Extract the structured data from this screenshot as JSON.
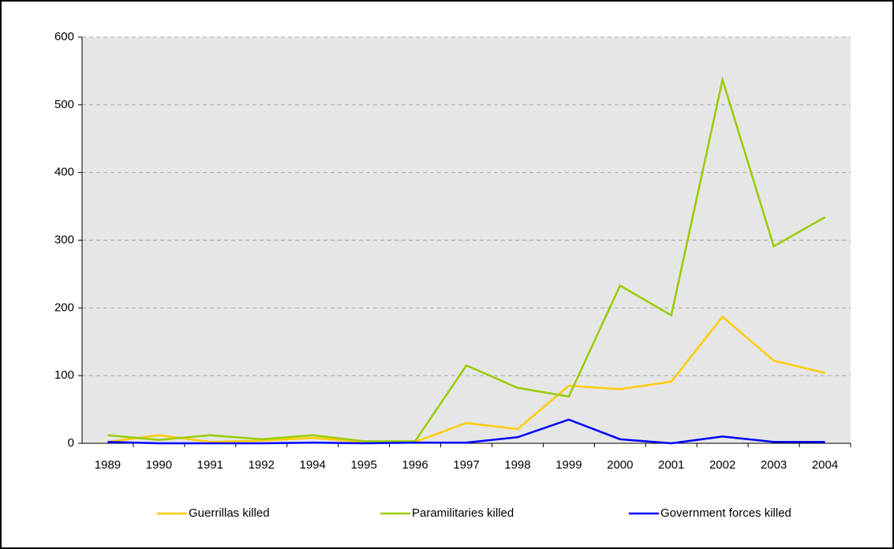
{
  "chart_data": {
    "type": "line",
    "categories": [
      "1989",
      "1990",
      "1991",
      "1992",
      "1994",
      "1995",
      "1996",
      "1997",
      "1998",
      "1999",
      "2000",
      "2001",
      "2002",
      "2003",
      "2004"
    ],
    "series": [
      {
        "name": "Guerrillas killed",
        "color": "#ffcc00",
        "values": [
          2,
          12,
          2,
          4,
          8,
          2,
          2,
          30,
          21,
          85,
          80,
          91,
          187,
          122,
          104
        ]
      },
      {
        "name": "Paramilitaries killed",
        "color": "#99cc00",
        "values": [
          12,
          5,
          12,
          6,
          12,
          3,
          3,
          115,
          82,
          69,
          233,
          189,
          537,
          291,
          334
        ]
      },
      {
        "name": "Government forces killed",
        "color": "#0000ff",
        "values": [
          2,
          0,
          0,
          0,
          1,
          0,
          1,
          1,
          9,
          35,
          6,
          0,
          10,
          2,
          2
        ]
      }
    ],
    "ylim": [
      0,
      600
    ],
    "yticks": [
      0,
      100,
      200,
      300,
      400,
      500,
      600
    ],
    "grid": true,
    "legend": "bottom"
  }
}
